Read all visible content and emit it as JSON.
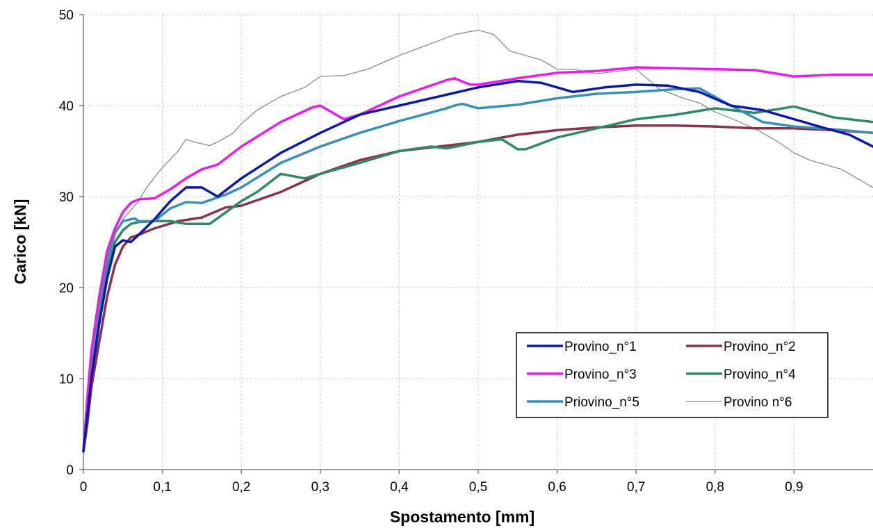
{
  "chart_data": {
    "type": "line",
    "xlabel": "Spostamento [mm]",
    "ylabel": "Carico [kN]",
    "xlim": [
      0,
      1.0
    ],
    "ylim": [
      0,
      50
    ],
    "x_ticks": [
      "0",
      "0,1",
      "0,2",
      "0,3",
      "0,4",
      "0,5",
      "0,6",
      "0,7",
      "0,8",
      "0,9"
    ],
    "x_tick_values": [
      0,
      0.1,
      0.2,
      0.3,
      0.4,
      0.5,
      0.6,
      0.7,
      0.8,
      0.9
    ],
    "y_ticks": [
      "0",
      "10",
      "20",
      "30",
      "40",
      "50"
    ],
    "y_tick_values": [
      0,
      10,
      20,
      30,
      40,
      50
    ],
    "grid": true,
    "legend_position": "lower-right",
    "series": [
      {
        "name": "Provino_n°1",
        "color": "#0a1aa8",
        "width": 3.5,
        "x": [
          0,
          0.005,
          0.01,
          0.02,
          0.03,
          0.04,
          0.05,
          0.06,
          0.07,
          0.09,
          0.11,
          0.13,
          0.15,
          0.17,
          0.2,
          0.25,
          0.3,
          0.35,
          0.4,
          0.45,
          0.5,
          0.55,
          0.58,
          0.62,
          0.66,
          0.7,
          0.74,
          0.78,
          0.82,
          0.86,
          0.9,
          0.94,
          0.97,
          1.0
        ],
        "y": [
          2,
          6,
          10,
          16,
          21,
          24.5,
          25.2,
          25,
          25.8,
          27.5,
          29.5,
          31,
          31,
          30,
          32,
          34.8,
          37,
          39,
          40,
          41,
          42,
          42.7,
          42.5,
          41.5,
          42,
          42.3,
          42.2,
          41.5,
          40,
          39.5,
          38.5,
          37.5,
          36.8,
          35.5
        ]
      },
      {
        "name": "Provino_n°2",
        "color": "#8a3248",
        "width": 3.5,
        "x": [
          0,
          0.005,
          0.01,
          0.02,
          0.03,
          0.04,
          0.05,
          0.06,
          0.07,
          0.09,
          0.12,
          0.15,
          0.18,
          0.2,
          0.25,
          0.3,
          0.35,
          0.4,
          0.45,
          0.5,
          0.55,
          0.6,
          0.65,
          0.7,
          0.75,
          0.8,
          0.85,
          0.9,
          0.95,
          1.0
        ],
        "y": [
          2,
          5,
          9,
          14,
          19,
          22.5,
          24.5,
          25.5,
          25.8,
          26.5,
          27.3,
          27.7,
          28.8,
          29,
          30.5,
          32.5,
          34,
          35,
          35.5,
          36,
          36.8,
          37.3,
          37.6,
          37.8,
          37.8,
          37.7,
          37.5,
          37.5,
          37.3,
          37
        ]
      },
      {
        "name": "Provino_n°3",
        "color": "#e81ee8",
        "width": 3.5,
        "x": [
          0,
          0.005,
          0.01,
          0.02,
          0.03,
          0.04,
          0.05,
          0.06,
          0.07,
          0.09,
          0.11,
          0.13,
          0.15,
          0.17,
          0.2,
          0.25,
          0.29,
          0.3,
          0.31,
          0.33,
          0.35,
          0.4,
          0.46,
          0.47,
          0.49,
          0.5,
          0.55,
          0.6,
          0.65,
          0.7,
          0.75,
          0.8,
          0.85,
          0.9,
          0.95,
          1.0
        ],
        "y": [
          2,
          8,
          13,
          19,
          24,
          26.5,
          28.3,
          29.3,
          29.7,
          29.8,
          30.8,
          32,
          33,
          33.5,
          35.5,
          38.2,
          39.8,
          40,
          39.5,
          38.5,
          39,
          41,
          42.8,
          43,
          42.3,
          42.3,
          43,
          43.6,
          43.8,
          44.2,
          44.1,
          44,
          43.9,
          43.2,
          43.4,
          43.4
        ]
      },
      {
        "name": "Provino_n°4",
        "color": "#2e8a64",
        "width": 3.5,
        "x": [
          0,
          0.005,
          0.01,
          0.02,
          0.03,
          0.04,
          0.05,
          0.06,
          0.07,
          0.09,
          0.11,
          0.13,
          0.16,
          0.2,
          0.22,
          0.25,
          0.28,
          0.3,
          0.35,
          0.4,
          0.44,
          0.46,
          0.5,
          0.53,
          0.55,
          0.56,
          0.6,
          0.65,
          0.7,
          0.75,
          0.8,
          0.85,
          0.9,
          0.95,
          1.0
        ],
        "y": [
          2,
          6,
          11,
          17,
          22,
          25,
          26.3,
          27,
          27.2,
          27.3,
          27.3,
          27,
          27,
          29.5,
          30.5,
          32.5,
          32,
          32.5,
          33.7,
          35,
          35.5,
          35.3,
          36,
          36.3,
          35.2,
          35.2,
          36.5,
          37.5,
          38.5,
          39,
          39.7,
          39.2,
          39.9,
          38.7,
          38.2
        ]
      },
      {
        "name": "Priovino_n°5",
        "color": "#3a90b4",
        "width": 3.5,
        "x": [
          0,
          0.005,
          0.01,
          0.02,
          0.03,
          0.04,
          0.05,
          0.06,
          0.065,
          0.07,
          0.09,
          0.11,
          0.13,
          0.15,
          0.18,
          0.2,
          0.25,
          0.3,
          0.35,
          0.4,
          0.46,
          0.47,
          0.48,
          0.5,
          0.55,
          0.6,
          0.65,
          0.7,
          0.75,
          0.78,
          0.82,
          0.86,
          0.9,
          0.95,
          1.0
        ],
        "y": [
          2,
          7,
          12,
          18,
          23,
          26,
          27.3,
          27.5,
          27.6,
          27.3,
          27.3,
          28.7,
          29.4,
          29.3,
          30.2,
          31,
          33.7,
          35.5,
          37,
          38.3,
          39.7,
          40,
          40.2,
          39.7,
          40.1,
          40.8,
          41.3,
          41.5,
          41.8,
          41.9,
          40,
          38.2,
          37.7,
          37.4,
          37
        ]
      },
      {
        "name": "Provino n°6",
        "color": "#8c8c8c",
        "width": 1.3,
        "x": [
          0,
          0.005,
          0.01,
          0.02,
          0.03,
          0.04,
          0.05,
          0.06,
          0.07,
          0.08,
          0.1,
          0.12,
          0.13,
          0.14,
          0.16,
          0.17,
          0.19,
          0.2,
          0.22,
          0.25,
          0.28,
          0.3,
          0.33,
          0.36,
          0.4,
          0.44,
          0.47,
          0.5,
          0.52,
          0.54,
          0.56,
          0.58,
          0.6,
          0.62,
          0.65,
          0.68,
          0.7,
          0.73,
          0.76,
          0.78,
          0.8,
          0.82,
          0.85,
          0.88,
          0.9,
          0.92,
          0.94,
          0.96,
          0.98,
          1.0
        ],
        "y": [
          2,
          8,
          13,
          19,
          23,
          26,
          27.5,
          28.5,
          29.5,
          31,
          33.2,
          35,
          36.3,
          36,
          35.6,
          36,
          37,
          38,
          39.5,
          41,
          42,
          43.2,
          43.3,
          44,
          45.5,
          46.8,
          47.8,
          48.3,
          47.8,
          46,
          45.5,
          45,
          44,
          44,
          43.5,
          43.8,
          44,
          41.8,
          40.8,
          40.3,
          39.3,
          38.6,
          37.5,
          36,
          34.8,
          34,
          33.5,
          33,
          32,
          31
        ]
      }
    ]
  }
}
